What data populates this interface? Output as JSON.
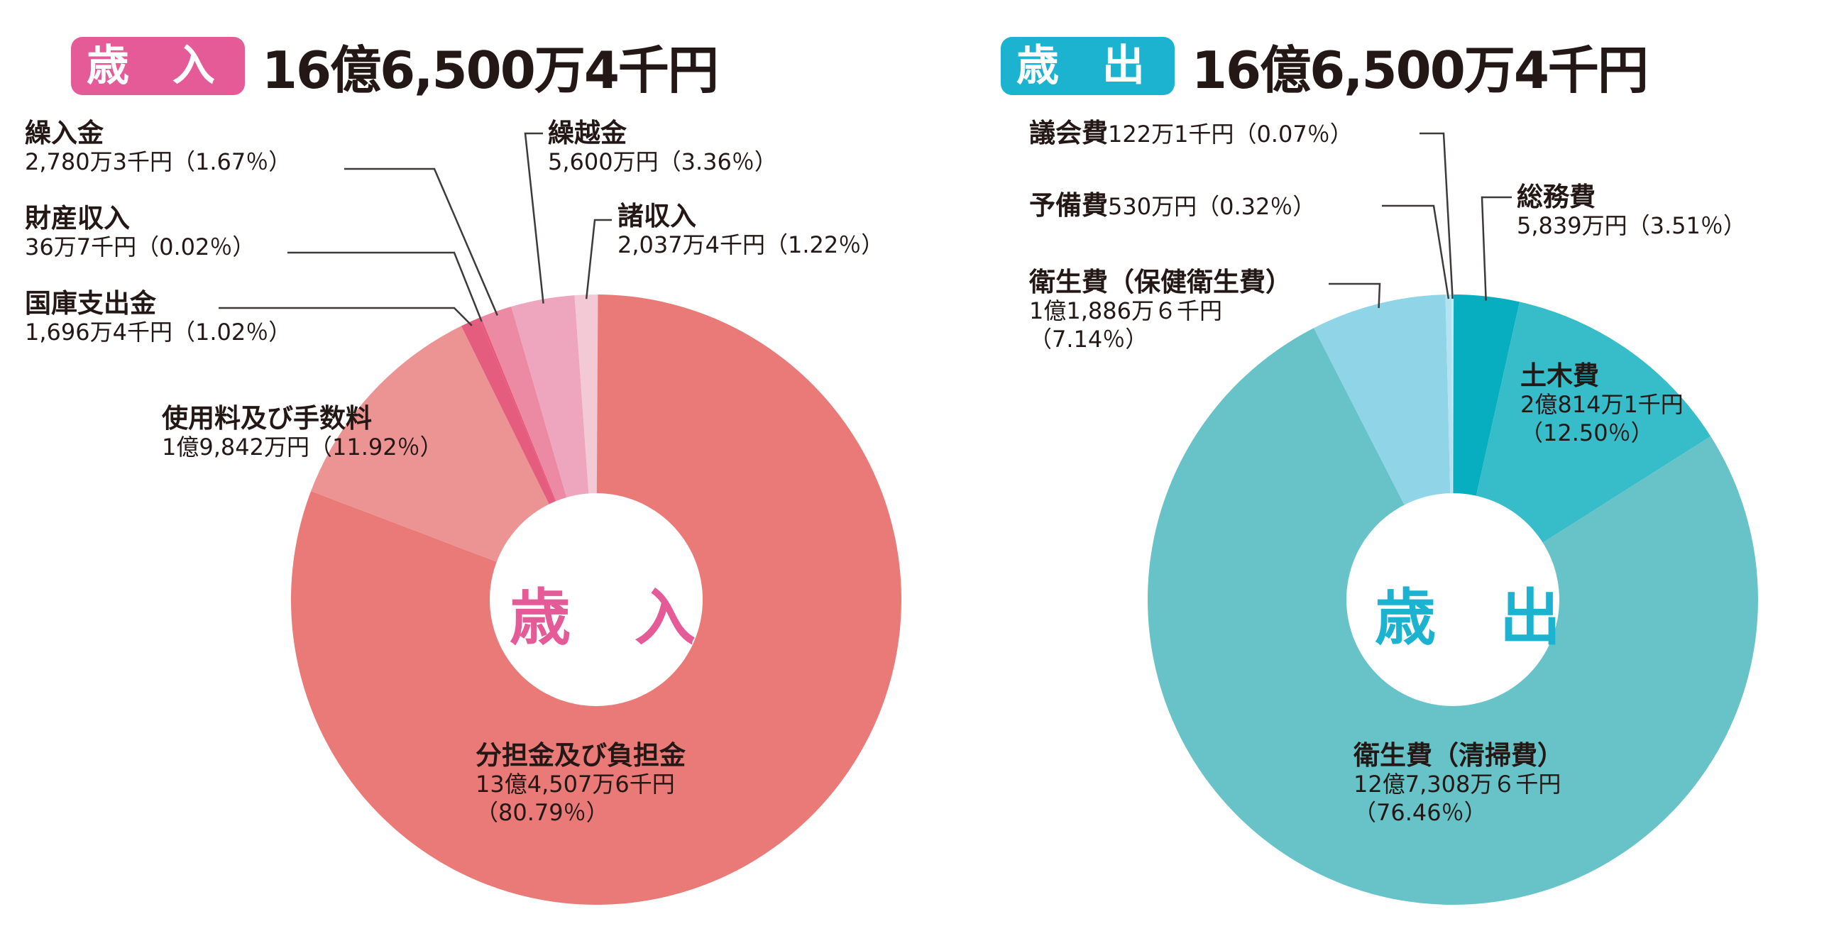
{
  "colors": {
    "in_accent": "#e45b97",
    "out_accent": "#1bb3cf"
  },
  "revenue": {
    "badge": "歳 入",
    "total": "16億6,500万4千円",
    "center": "歳 入",
    "labels": [
      {
        "name": "繰入金",
        "value": "2,780万3千円（1.67％）"
      },
      {
        "name": "財産収入",
        "value": "36万7千円（0.02％）"
      },
      {
        "name": "国庫支出金",
        "value": "1,696万4千円（1.02％）"
      },
      {
        "name": "使用料及び手数料",
        "value": "1億9,842万円（11.92％）"
      },
      {
        "name": "繰越金",
        "value": "5,600万円（3.36％）"
      },
      {
        "name": "諸収入",
        "value": "2,037万4千円（1.22％）"
      },
      {
        "name": "分担金及び負担金",
        "value": "13億4,507万6千円",
        "pct": "（80.79％）"
      }
    ]
  },
  "expenditure": {
    "badge": "歳 出",
    "total": "16億6,500万4千円",
    "center": "歳 出",
    "labels": [
      {
        "name": "議会費",
        "value": "122万1千円（0.07％）"
      },
      {
        "name": "予備費",
        "value": "530万円（0.32％）"
      },
      {
        "name": "衛生費（保健衛生費）",
        "value": "1億1,886万６千円",
        "pct": "（7.14％）"
      },
      {
        "name": "総務費",
        "value": "5,839万円（3.51％）"
      },
      {
        "name": "土木費",
        "value": "2億814万1千円",
        "pct": "（12.50％）"
      },
      {
        "name": "衛生費（清掃費）",
        "value": "12億7,308万６千円",
        "pct": "（76.46％）"
      }
    ]
  },
  "chart_data": [
    {
      "type": "pie",
      "title": "歳入 16億6,500万4千円",
      "categories": [
        "分担金及び負担金",
        "使用料及び手数料",
        "国庫支出金",
        "財産収入",
        "繰入金",
        "繰越金",
        "諸収入"
      ],
      "values": [
        80.79,
        11.92,
        1.02,
        0.02,
        1.67,
        3.36,
        1.22
      ],
      "colors": [
        "#e97a78",
        "#ec9393",
        "#e45d7f",
        "#e8577a",
        "#ec8aa4",
        "#eda6bd",
        "#f3c9d6"
      ]
    },
    {
      "type": "pie",
      "title": "歳出 16億6,500万4千円",
      "categories": [
        "総務費",
        "土木費",
        "衛生費（清掃費）",
        "衛生費（保健衛生費）",
        "予備費",
        "議会費"
      ],
      "values": [
        3.51,
        12.5,
        76.46,
        7.14,
        0.32,
        0.07
      ],
      "colors": [
        "#06aec0",
        "#36bdc9",
        "#67c3c8",
        "#8fd4e7",
        "#b4e3ef",
        "#c6ebf3"
      ]
    }
  ]
}
